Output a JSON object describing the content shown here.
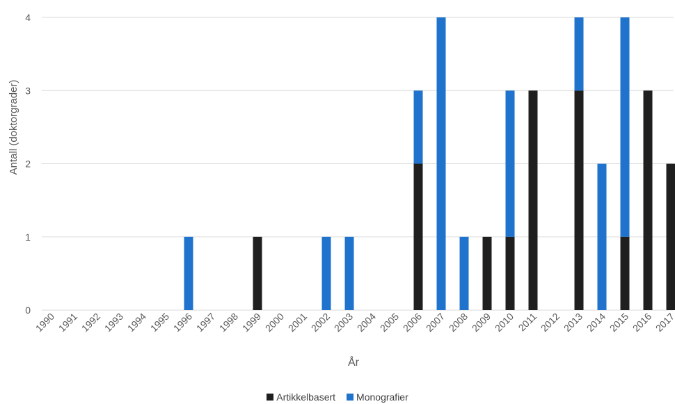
{
  "chart_data": {
    "type": "bar",
    "stacked": true,
    "xlabel": "År",
    "ylabel": "Antall (doktorgrader)",
    "ylim": [
      0,
      4
    ],
    "yticks": [
      0,
      1,
      2,
      3,
      4
    ],
    "grid": true,
    "legend_position": "bottom",
    "categories": [
      "1990",
      "1991",
      "1992",
      "1993",
      "1994",
      "1995",
      "1996",
      "1997",
      "1998",
      "1999",
      "2000",
      "2001",
      "2002",
      "2003",
      "2004",
      "2005",
      "2006",
      "2007",
      "2008",
      "2009",
      "2010",
      "2011",
      "2012",
      "2013",
      "2014",
      "2015",
      "2016",
      "2017"
    ],
    "series": [
      {
        "name": "Artikkelbasert",
        "color": "#1f1f1f",
        "values": [
          0,
          0,
          0,
          0,
          0,
          0,
          0,
          0,
          0,
          1,
          0,
          0,
          0,
          0,
          0,
          0,
          2,
          0,
          0,
          1,
          1,
          3,
          0,
          3,
          0,
          1,
          3,
          2
        ]
      },
      {
        "name": "Monografier",
        "color": "#1f73cc",
        "values": [
          0,
          0,
          0,
          0,
          0,
          0,
          1,
          0,
          0,
          0,
          0,
          0,
          1,
          1,
          0,
          0,
          1,
          4,
          1,
          0,
          2,
          0,
          0,
          1,
          2,
          3,
          0,
          0
        ]
      }
    ]
  }
}
